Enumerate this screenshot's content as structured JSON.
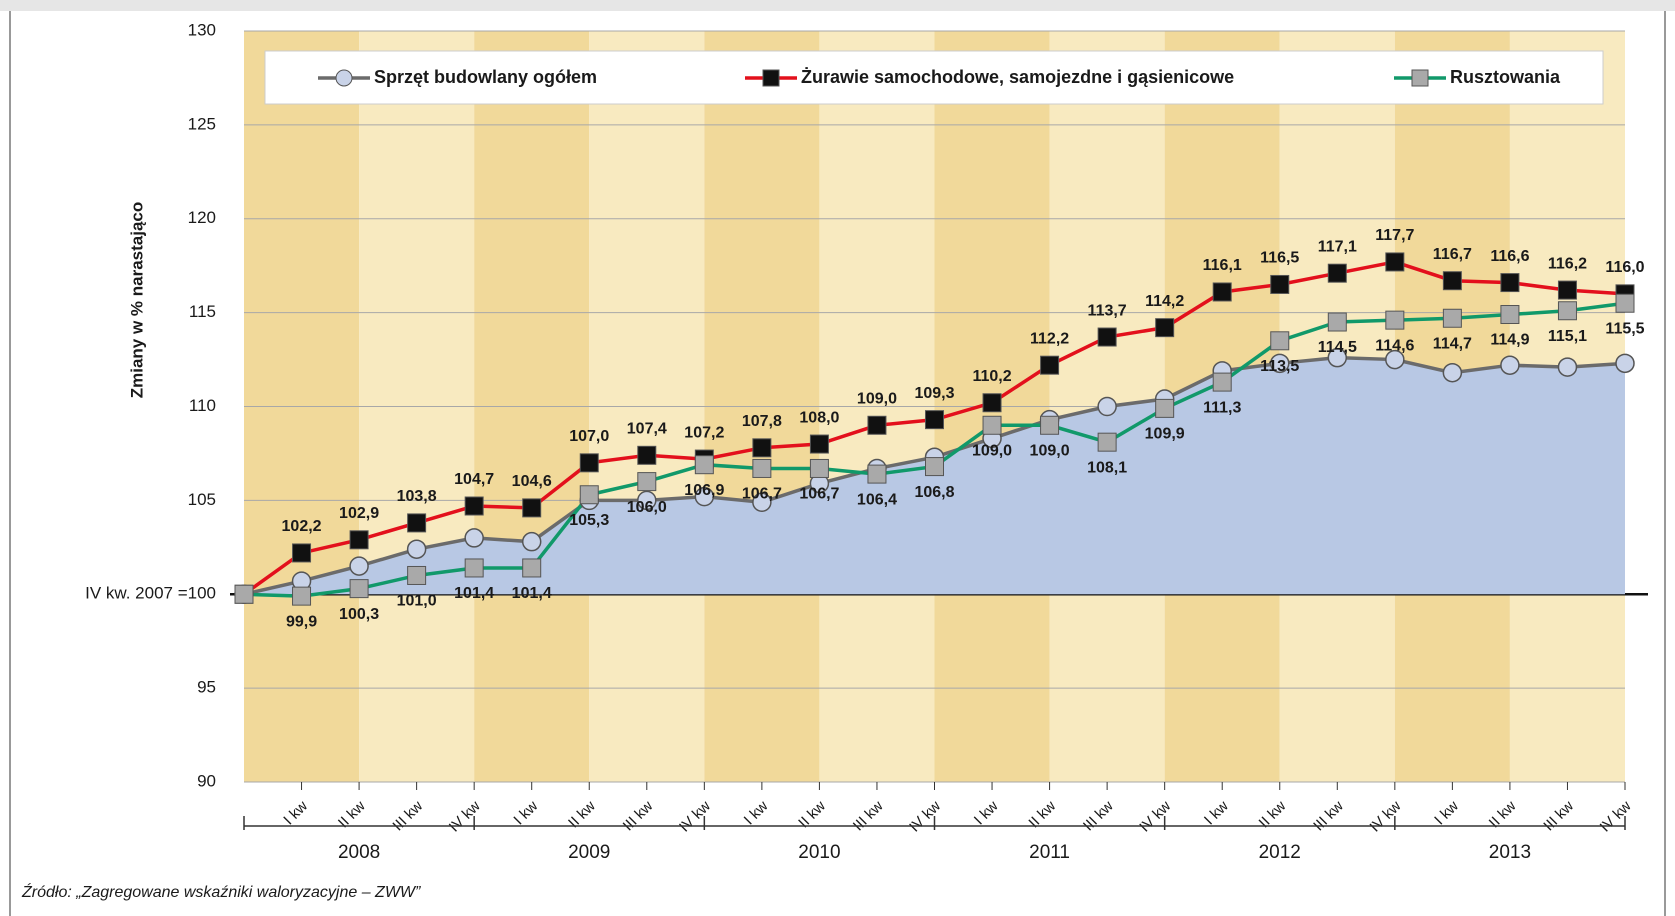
{
  "chart_data": {
    "type": "line",
    "y_label": "Zmiany w % narastająco",
    "source": "Źródło: „Zagregowane wskaźniki waloryzacyjne – ZWW”",
    "categories": [
      null,
      "I kw",
      "II kw",
      "III kw",
      "IV kw",
      "I kw",
      "II kw",
      "III kw",
      "IV kw",
      "I kw",
      "II kw",
      "III kw",
      "IV kw",
      "I kw",
      "II kw",
      "III kw",
      "IV kw",
      "I kw",
      "II kw",
      "III kw",
      "IV kw",
      "I kw",
      "II kw",
      "III kw",
      "IV kw"
    ],
    "years": [
      "2008",
      "2009",
      "2010",
      "2011",
      "2012",
      "2013"
    ],
    "ylim": [
      90,
      130
    ],
    "yticks": [
      90,
      95,
      {
        "value": 100,
        "label": "IV kw. 2007 =100"
      },
      105,
      110,
      115,
      120,
      125,
      130
    ],
    "grid": true,
    "series": [
      {
        "name": "Sprzęt budowlany ogółem",
        "color": "#6b6b6b",
        "marker": "circle",
        "marker_color": "#c9d3e8",
        "area": true,
        "area_color": "#b8c8e4",
        "values": [
          100,
          100.7,
          101.5,
          102.4,
          103.0,
          102.8,
          105.0,
          105.0,
          105.2,
          104.9,
          105.9,
          106.7,
          107.3,
          108.3,
          109.3,
          110.0,
          110.4,
          111.9,
          112.3,
          112.6,
          112.5,
          111.8,
          112.2,
          112.1,
          112.3
        ]
      },
      {
        "name": "Żurawie samochodowe, samojezdne i gąsienicowe",
        "color": "#e3101c",
        "marker": "square",
        "marker_color": "#111111",
        "values": [
          100,
          102.2,
          102.9,
          103.8,
          104.7,
          104.6,
          107.0,
          107.4,
          107.2,
          107.8,
          108.0,
          109.0,
          109.3,
          110.2,
          112.2,
          113.7,
          114.2,
          116.1,
          116.5,
          117.1,
          117.7,
          116.7,
          116.6,
          116.2,
          116.0
        ],
        "value_labels": [
          null,
          "102,2",
          "102,9",
          "103,8",
          "104,7",
          "104,6",
          "107,0",
          "107,4",
          "107,2",
          "107,8",
          "108,0",
          "109,0",
          "109,3",
          "110,2",
          "112,2",
          "113,7",
          "114,2",
          "116,1",
          "116,5",
          "117,1",
          "117,7",
          "116,7",
          "116,6",
          "116,2",
          "116,0"
        ]
      },
      {
        "name": "Rusztowania",
        "color": "#11996a",
        "marker": "square",
        "marker_color": "#a9a9a9",
        "values": [
          100,
          99.9,
          100.3,
          101.0,
          101.4,
          101.4,
          105.3,
          106.0,
          106.9,
          106.7,
          106.7,
          106.4,
          106.8,
          109.0,
          109.0,
          108.1,
          109.9,
          111.3,
          113.5,
          114.5,
          114.6,
          114.7,
          114.9,
          115.1,
          115.5
        ],
        "value_labels": [
          null,
          "99,9",
          "100,3",
          "101,0",
          "101,4",
          "101,4",
          "105,3",
          "106,0",
          "106,9",
          "106,7",
          "106,7",
          "106,4",
          "106,8",
          "109,0",
          "109,0",
          "108,1",
          "109,9",
          "111,3",
          "113,5",
          "114,5",
          "114,6",
          "114,7",
          "114,9",
          "115,1",
          "115,5"
        ]
      }
    ]
  }
}
